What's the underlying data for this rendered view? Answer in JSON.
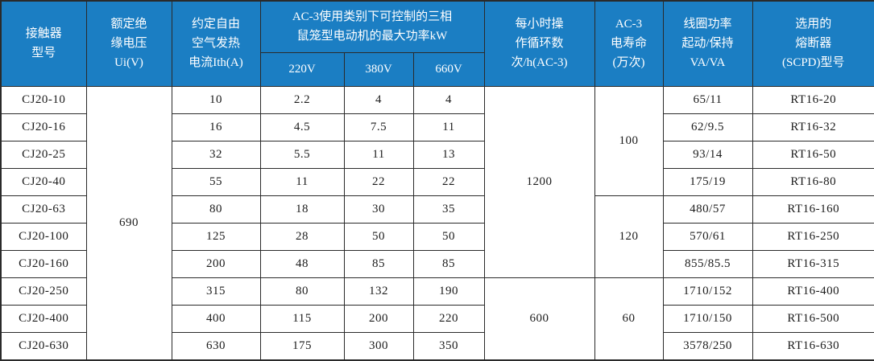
{
  "colors": {
    "header_bg": "#1b7ec3",
    "header_text": "#ffffff",
    "border": "#2a2a2a",
    "body_text": "#1c1c1c"
  },
  "table": {
    "headers": {
      "model": "接触器\n型号",
      "ui": "额定绝\n缘电压\nUi(V)",
      "ith": "约定自由\n空气发热\n电流Ith(A)",
      "ac3_power": "AC-3使用类别下可控制的三相\n鼠笼型电动机的最大功率kW",
      "v220": "220V",
      "v380": "380V",
      "v660": "660V",
      "cycles": "每小时操\n作循环数\n次/h(AC-3)",
      "life": "AC-3\n电寿命\n(万次)",
      "coil": "线圈功率\n起动/保持\nVA/VA",
      "fuse": "选用的\n熔断器\n(SCPD)型号"
    },
    "ui_span": {
      "value": "690",
      "start": 0,
      "span": 10
    },
    "cycles_spans": [
      {
        "value": "1200",
        "start": 0,
        "span": 7
      },
      {
        "value": "600",
        "start": 7,
        "span": 3
      }
    ],
    "life_spans": [
      {
        "value": "100",
        "start": 0,
        "span": 4
      },
      {
        "value": "120",
        "start": 4,
        "span": 3
      },
      {
        "value": "60",
        "start": 7,
        "span": 3
      }
    ],
    "rows": [
      {
        "model": "CJ20-10",
        "ith": "10",
        "p220": "2.2",
        "p380": "4",
        "p660": "4",
        "coil": "65/11",
        "fuse": "RT16-20"
      },
      {
        "model": "CJ20-16",
        "ith": "16",
        "p220": "4.5",
        "p380": "7.5",
        "p660": "11",
        "coil": "62/9.5",
        "fuse": "RT16-32"
      },
      {
        "model": "CJ20-25",
        "ith": "32",
        "p220": "5.5",
        "p380": "11",
        "p660": "13",
        "coil": "93/14",
        "fuse": "RT16-50"
      },
      {
        "model": "CJ20-40",
        "ith": "55",
        "p220": "11",
        "p380": "22",
        "p660": "22",
        "coil": "175/19",
        "fuse": "RT16-80"
      },
      {
        "model": "CJ20-63",
        "ith": "80",
        "p220": "18",
        "p380": "30",
        "p660": "35",
        "coil": "480/57",
        "fuse": "RT16-160"
      },
      {
        "model": "CJ20-100",
        "ith": "125",
        "p220": "28",
        "p380": "50",
        "p660": "50",
        "coil": "570/61",
        "fuse": "RT16-250"
      },
      {
        "model": "CJ20-160",
        "ith": "200",
        "p220": "48",
        "p380": "85",
        "p660": "85",
        "coil": "855/85.5",
        "fuse": "RT16-315"
      },
      {
        "model": "CJ20-250",
        "ith": "315",
        "p220": "80",
        "p380": "132",
        "p660": "190",
        "coil": "1710/152",
        "fuse": "RT16-400"
      },
      {
        "model": "CJ20-400",
        "ith": "400",
        "p220": "115",
        "p380": "200",
        "p660": "220",
        "coil": "1710/150",
        "fuse": "RT16-500"
      },
      {
        "model": "CJ20-630",
        "ith": "630",
        "p220": "175",
        "p380": "300",
        "p660": "350",
        "coil": "3578/250",
        "fuse": "RT16-630"
      }
    ]
  }
}
